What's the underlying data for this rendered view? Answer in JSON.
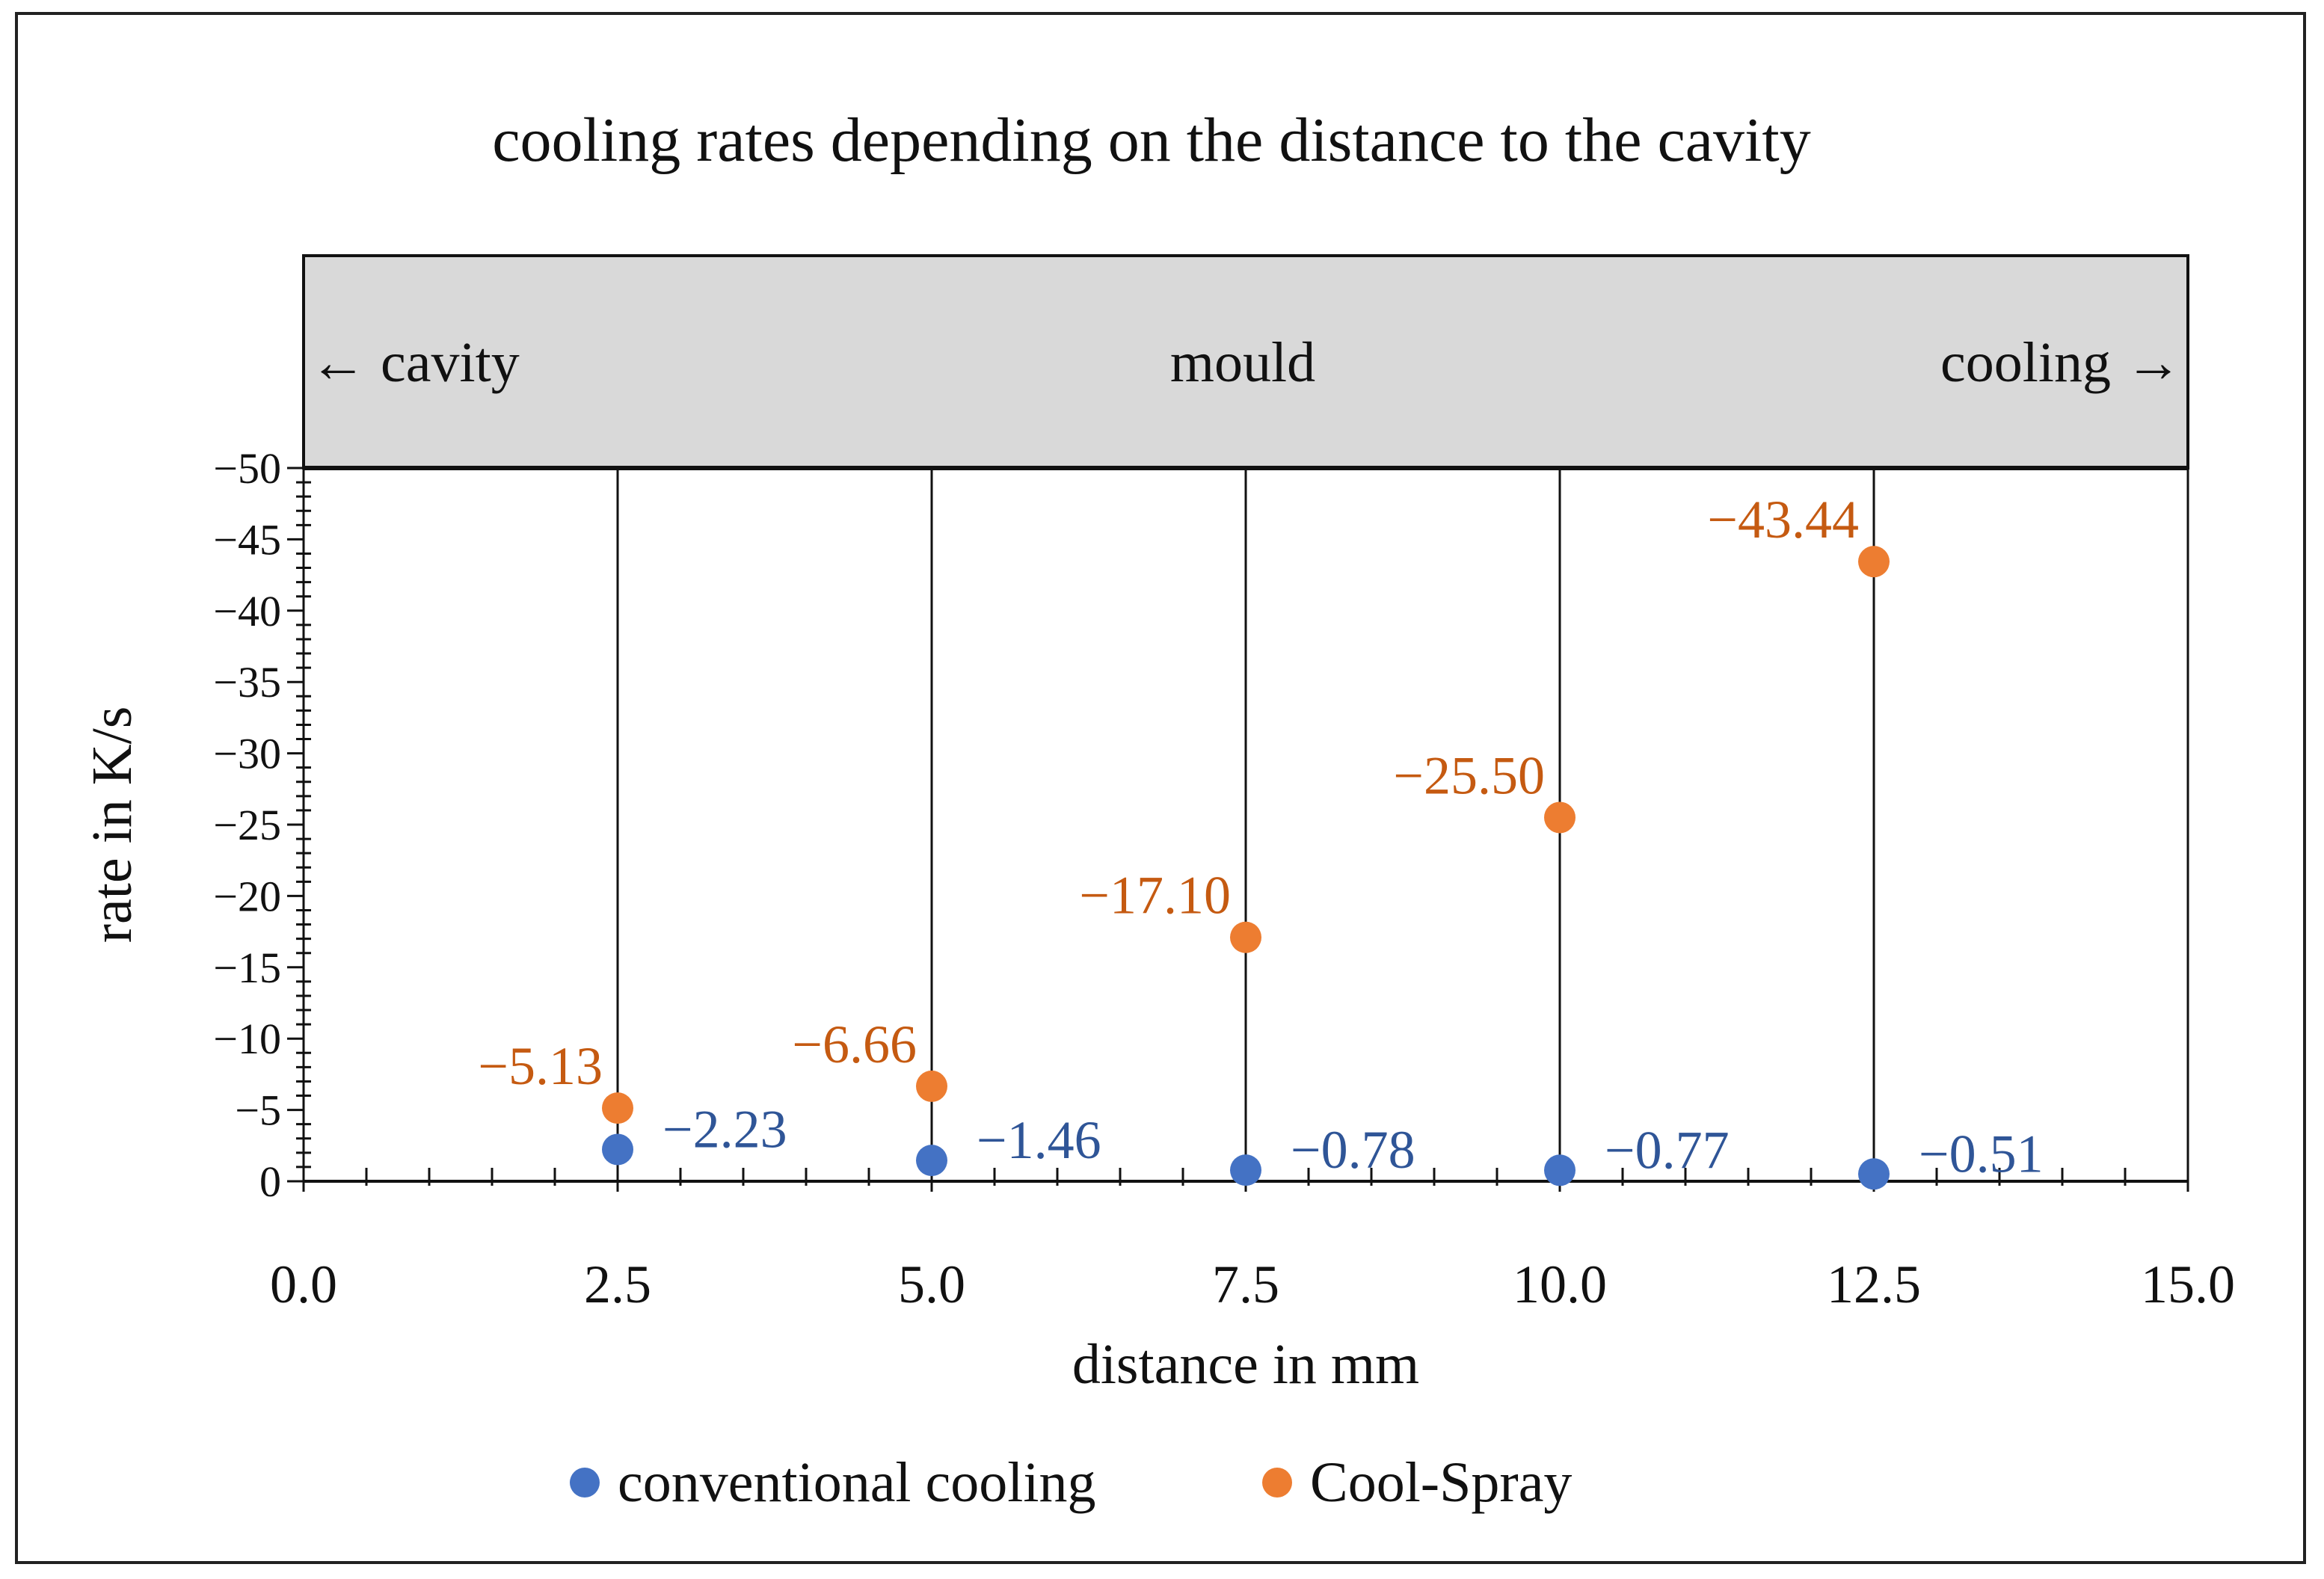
{
  "chart_data": {
    "type": "scatter",
    "title": "cooling rates depending on the distance to the cavity",
    "xlabel": "distance in mm",
    "ylabel": "rate in K/s",
    "xlim": [
      0,
      15
    ],
    "ylim": [
      0,
      -50
    ],
    "x_ticks": [
      0,
      2.5,
      5,
      7.5,
      10,
      12.5,
      15
    ],
    "x_tick_labels": [
      "0.0",
      "2.5",
      "5.0",
      "7.5",
      "10.0",
      "12.5",
      "15.0"
    ],
    "y_ticks": [
      0,
      -5,
      -10,
      -15,
      -20,
      -25,
      -30,
      -35,
      -40,
      -45,
      -50
    ],
    "y_tick_labels": [
      "0",
      "−5",
      "−10",
      "−15",
      "−20",
      "−25",
      "−30",
      "−35",
      "−40",
      "−45",
      "−50"
    ],
    "band": {
      "left_label": "← cavity",
      "center_label": "mould",
      "right_label": "cooling →"
    },
    "series": [
      {
        "name": "conventional cooling",
        "color": "#4472c4",
        "x": [
          2.5,
          5,
          7.5,
          10,
          12.5
        ],
        "values": [
          -2.23,
          -1.46,
          -0.78,
          -0.77,
          -0.51
        ],
        "labels": [
          "−2.23",
          "−1.46",
          "−0.78",
          "−0.77",
          "−0.51"
        ]
      },
      {
        "name": "Cool-Spray",
        "color": "#ed7d31",
        "x": [
          2.5,
          5,
          7.5,
          10,
          12.5
        ],
        "values": [
          -5.13,
          -6.66,
          -17.1,
          -25.5,
          -43.44
        ],
        "labels": [
          "−5.13",
          "−6.66",
          "−17.10",
          "−25.50",
          "−43.44"
        ]
      }
    ],
    "legend_position": "bottom-center",
    "label_colors": {
      "conventional cooling": "#2f5597",
      "Cool-Spray": "#c55a11"
    }
  }
}
